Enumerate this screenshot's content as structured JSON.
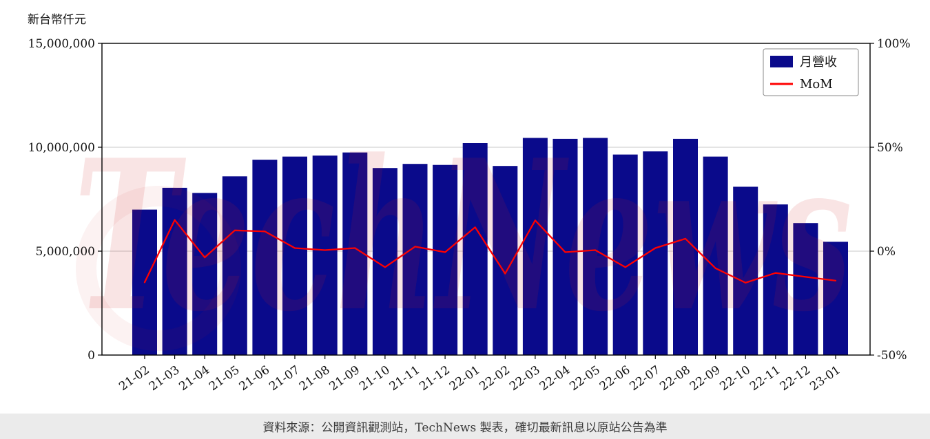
{
  "watermark": "TechNews",
  "footer": {
    "text": "資料來源：公開資訊觀測站，TechNews 製表，確切最新訊息以原站公告為準"
  },
  "chart_data": {
    "type": "bar",
    "subtype": "bar+line-combo",
    "categories": [
      "21-02",
      "21-03",
      "21-04",
      "21-05",
      "21-06",
      "21-07",
      "21-08",
      "21-09",
      "21-10",
      "21-11",
      "21-12",
      "22-01",
      "22-02",
      "22-03",
      "22-04",
      "22-05",
      "22-06",
      "22-07",
      "22-08",
      "22-09",
      "22-10",
      "22-11",
      "22-12",
      "23-01"
    ],
    "series": [
      {
        "name": "月營收",
        "type": "bar",
        "axis": "left",
        "color": "#0a0a8b",
        "values": [
          7000000,
          8050000,
          7800000,
          8600000,
          9400000,
          9550000,
          9600000,
          9750000,
          9000000,
          9200000,
          9150000,
          10200000,
          9100000,
          10450000,
          10400000,
          10450000,
          9650000,
          9800000,
          10400000,
          9550000,
          8100000,
          7250000,
          6350000,
          5450000
        ]
      },
      {
        "name": "MoM",
        "type": "line",
        "axis": "right",
        "color": "#ff0000",
        "unit": "%",
        "values": [
          -15,
          15,
          -3,
          10,
          9.5,
          1.5,
          0.5,
          1.5,
          -7.7,
          2.2,
          -0.5,
          11.5,
          -10.8,
          14.8,
          -0.5,
          0.5,
          -7.7,
          1.5,
          6,
          -8.2,
          -15.2,
          -10.5,
          -12.4,
          -14.2
        ]
      }
    ],
    "left_axis": {
      "label": "新台幣仟元",
      "range": [
        0,
        15000000
      ],
      "ticks": [
        0,
        5000000,
        10000000,
        15000000
      ]
    },
    "right_axis": {
      "range": [
        -50,
        100
      ],
      "ticks": [
        -50,
        0,
        50,
        100
      ],
      "unit": "%"
    },
    "legend": {
      "position": "top-right",
      "entries": [
        "月營收",
        "MoM"
      ]
    },
    "grid": true
  }
}
